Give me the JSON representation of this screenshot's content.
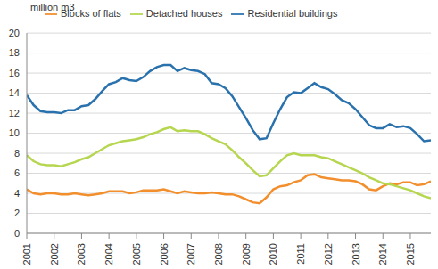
{
  "chart_data": {
    "type": "line",
    "y_label": "million m3",
    "x": [
      2001,
      2001.25,
      2001.5,
      2001.75,
      2002,
      2002.25,
      2002.5,
      2002.75,
      2003,
      2003.25,
      2003.5,
      2003.75,
      2004,
      2004.25,
      2004.5,
      2004.75,
      2005,
      2005.25,
      2005.5,
      2005.75,
      2006,
      2006.25,
      2006.5,
      2006.75,
      2007,
      2007.25,
      2007.5,
      2007.75,
      2008,
      2008.25,
      2008.5,
      2008.75,
      2009,
      2009.25,
      2009.5,
      2009.75,
      2010,
      2010.25,
      2010.5,
      2010.75,
      2011,
      2011.25,
      2011.5,
      2011.75,
      2012,
      2012.25,
      2012.5,
      2012.75,
      2013,
      2013.25,
      2013.5,
      2013.75,
      2014,
      2014.25,
      2014.5,
      2014.75,
      2015,
      2015.25,
      2015.5,
      2015.75
    ],
    "series": [
      {
        "name": "Residential buildings",
        "color": "#2a72ad",
        "values": [
          13.8,
          12.8,
          12.2,
          12.1,
          12.1,
          12.0,
          12.3,
          12.3,
          12.7,
          12.8,
          13.4,
          14.2,
          14.9,
          15.1,
          15.5,
          15.3,
          15.2,
          15.6,
          16.2,
          16.6,
          16.8,
          16.8,
          16.2,
          16.5,
          16.3,
          16.2,
          15.9,
          15.0,
          14.9,
          14.5,
          13.7,
          12.6,
          11.5,
          10.3,
          9.4,
          9.5,
          11.0,
          12.4,
          13.6,
          14.1,
          14.0,
          14.5,
          15.0,
          14.6,
          14.4,
          13.9,
          13.3,
          13.0,
          12.4,
          11.6,
          10.8,
          10.5,
          10.5,
          10.9,
          10.6,
          10.7,
          10.5,
          9.9,
          9.2,
          9.3
        ]
      },
      {
        "name": "Blocks of flats",
        "color": "#f28e2b",
        "values": [
          4.4,
          4.0,
          3.9,
          4.0,
          4.0,
          3.9,
          3.9,
          4.0,
          3.9,
          3.8,
          3.9,
          4.0,
          4.2,
          4.2,
          4.2,
          4.0,
          4.1,
          4.3,
          4.3,
          4.3,
          4.4,
          4.2,
          4.0,
          4.2,
          4.1,
          4.0,
          4.0,
          4.1,
          4.0,
          3.9,
          3.9,
          3.7,
          3.4,
          3.1,
          3.0,
          3.6,
          4.4,
          4.7,
          4.8,
          5.1,
          5.3,
          5.8,
          5.9,
          5.6,
          5.5,
          5.4,
          5.3,
          5.3,
          5.2,
          4.9,
          4.4,
          4.3,
          4.7,
          5.0,
          4.9,
          5.1,
          5.1,
          4.8,
          4.9,
          5.2
        ]
      },
      {
        "name": "Detached houses",
        "color": "#b5d64e",
        "values": [
          7.8,
          7.2,
          6.9,
          6.8,
          6.8,
          6.7,
          6.9,
          7.1,
          7.4,
          7.6,
          8.0,
          8.4,
          8.8,
          9.0,
          9.2,
          9.3,
          9.4,
          9.6,
          9.9,
          10.1,
          10.4,
          10.6,
          10.2,
          10.3,
          10.2,
          10.2,
          9.9,
          9.5,
          9.2,
          8.9,
          8.3,
          7.6,
          7.0,
          6.3,
          5.7,
          5.8,
          6.5,
          7.2,
          7.8,
          8.0,
          7.8,
          7.8,
          7.8,
          7.6,
          7.5,
          7.2,
          6.9,
          6.6,
          6.3,
          6.0,
          5.6,
          5.3,
          5.0,
          4.9,
          4.7,
          4.5,
          4.3,
          4.0,
          3.7,
          3.5
        ]
      }
    ],
    "xlim": [
      2001,
      2015.75
    ],
    "xticks": [
      2001,
      2002,
      2003,
      2004,
      2005,
      2006,
      2007,
      2008,
      2009,
      2010,
      2011,
      2012,
      2013,
      2014,
      2015
    ],
    "ylim": [
      0,
      20
    ],
    "yticks": [
      0,
      2,
      4,
      6,
      8,
      10,
      12,
      14,
      16,
      18,
      20
    ],
    "grid": true,
    "legend": "top"
  }
}
